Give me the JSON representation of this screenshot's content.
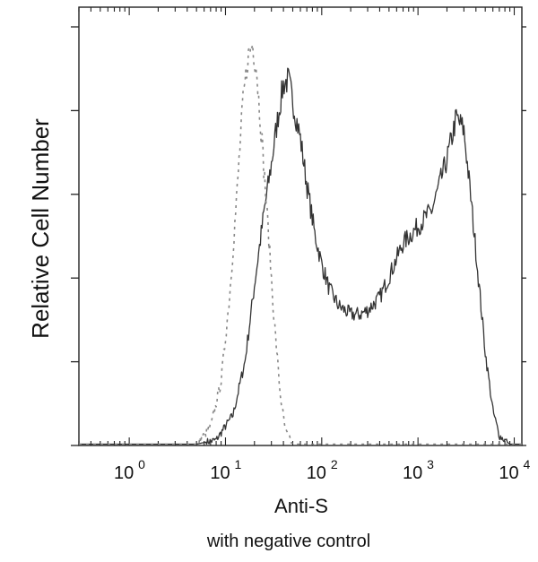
{
  "chart_data": {
    "type": "line",
    "title": "",
    "xlabel": "Anti-S",
    "subtitle": "with negative control",
    "ylabel": "Relative Cell Number",
    "xscale": "log",
    "xlim": [
      0.3,
      12000
    ],
    "ylim": [
      0,
      1.0
    ],
    "grid": false,
    "legend": "none",
    "x_ticks": [
      {
        "base": "10",
        "exp": "0",
        "value": 1
      },
      {
        "base": "10",
        "exp": "1",
        "value": 10
      },
      {
        "base": "10",
        "exp": "2",
        "value": 100
      },
      {
        "base": "10",
        "exp": "3",
        "value": 1000
      },
      {
        "base": "10",
        "exp": "4",
        "value": 10000
      }
    ],
    "colors": {
      "sample": "#333333",
      "control": "#888888",
      "axis": "#222222"
    },
    "series": [
      {
        "style": "solid",
        "points": [
          [
            0.3,
            0.0
          ],
          [
            5,
            0.0
          ],
          [
            8,
            0.01
          ],
          [
            12,
            0.07
          ],
          [
            16,
            0.2
          ],
          [
            20,
            0.38
          ],
          [
            25,
            0.55
          ],
          [
            30,
            0.67
          ],
          [
            35,
            0.78
          ],
          [
            40,
            0.86
          ],
          [
            45,
            0.87
          ],
          [
            50,
            0.82
          ],
          [
            60,
            0.73
          ],
          [
            70,
            0.62
          ],
          [
            85,
            0.5
          ],
          [
            100,
            0.43
          ],
          [
            120,
            0.37
          ],
          [
            150,
            0.33
          ],
          [
            200,
            0.31
          ],
          [
            250,
            0.31
          ],
          [
            300,
            0.32
          ],
          [
            400,
            0.35
          ],
          [
            500,
            0.4
          ],
          [
            700,
            0.48
          ],
          [
            1000,
            0.52
          ],
          [
            1400,
            0.56
          ],
          [
            2000,
            0.68
          ],
          [
            2500,
            0.78
          ],
          [
            3000,
            0.75
          ],
          [
            3500,
            0.6
          ],
          [
            4000,
            0.46
          ],
          [
            5000,
            0.22
          ],
          [
            6000,
            0.08
          ],
          [
            7000,
            0.02
          ],
          [
            9000,
            0.0
          ],
          [
            12000,
            0.0
          ]
        ]
      },
      {
        "style": "dashed",
        "points": [
          [
            0.3,
            0.0
          ],
          [
            5,
            0.0
          ],
          [
            7,
            0.04
          ],
          [
            9,
            0.15
          ],
          [
            11,
            0.35
          ],
          [
            13,
            0.58
          ],
          [
            15,
            0.8
          ],
          [
            17,
            0.92
          ],
          [
            19,
            0.96
          ],
          [
            21,
            0.9
          ],
          [
            24,
            0.72
          ],
          [
            28,
            0.5
          ],
          [
            32,
            0.3
          ],
          [
            37,
            0.12
          ],
          [
            42,
            0.03
          ],
          [
            50,
            0.0
          ],
          [
            12000,
            0.0
          ]
        ]
      }
    ]
  }
}
